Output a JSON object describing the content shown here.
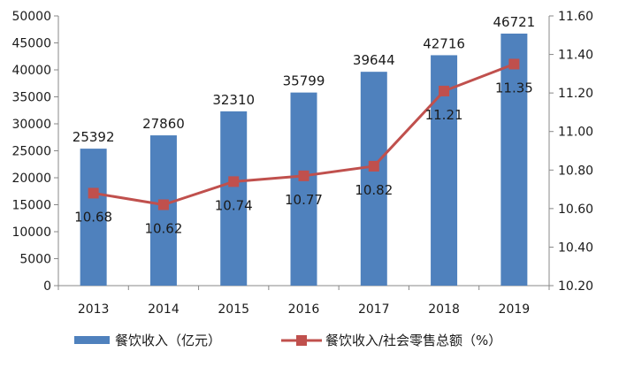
{
  "chart_data": {
    "type": "bar",
    "categories": [
      "2013",
      "2014",
      "2015",
      "2016",
      "2017",
      "2018",
      "2019"
    ],
    "series": [
      {
        "name": "餐饮收入（亿元）",
        "type": "bar",
        "axis": "left",
        "values": [
          25392,
          27860,
          32310,
          35799,
          39644,
          42716,
          46721
        ],
        "color": "#4f81bd"
      },
      {
        "name": "餐饮收入/社会零售总额（%）",
        "type": "line",
        "axis": "right",
        "values": [
          10.68,
          10.62,
          10.74,
          10.77,
          10.82,
          11.21,
          11.35
        ],
        "color": "#c0504d"
      }
    ],
    "y_left": {
      "min": 0,
      "max": 50000,
      "step": 5000
    },
    "y_right": {
      "min": 10.2,
      "max": 11.6,
      "step": 0.2
    },
    "value_labels_left": [
      "25392",
      "27860",
      "32310",
      "35799",
      "39644",
      "42716",
      "46721"
    ],
    "value_labels_right": [
      "10.68",
      "10.62",
      "10.74",
      "10.77",
      "10.82",
      "11.21",
      "11.35"
    ],
    "grid": false,
    "legend_position": "bottom"
  }
}
